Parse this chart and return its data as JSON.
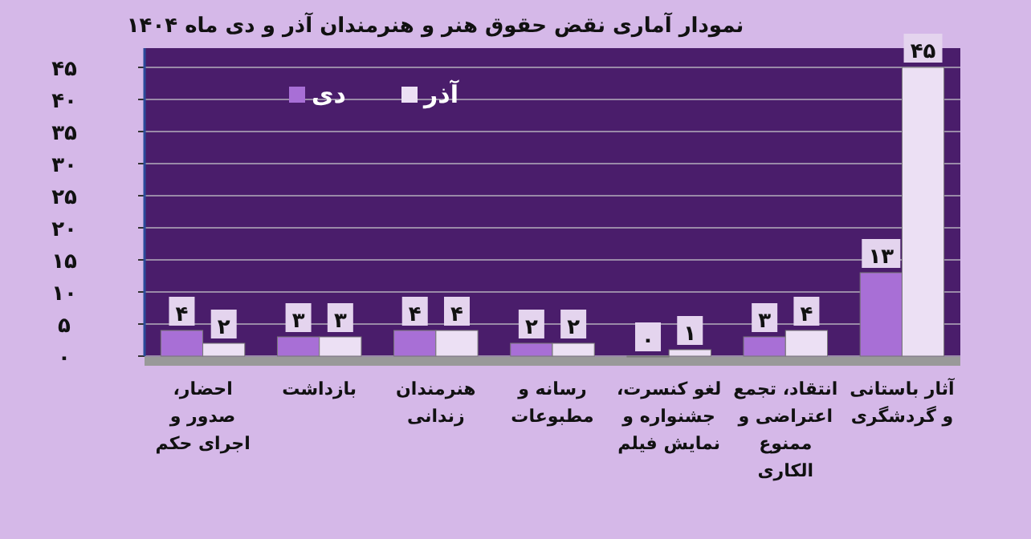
{
  "chart_data": {
    "type": "bar",
    "title": "نمودار آماری نقض حقوق هنر و هنرمندان آذر و دی ماه ۱۴۰۴",
    "categories": [
      "احضار، صدور و اجرای حکم",
      "بازداشت",
      "هنرمندان زندانی",
      "رسانه و مطبوعات",
      "لغو کنسرت، جشنواره و نمایش فیلم",
      "انتقاد، تجمع اعتراضی و ممنوع الکاری",
      "آثار باستانی و گردشگری"
    ],
    "series": [
      {
        "name": "دی",
        "color": "#a86fd6",
        "values": [
          4,
          3,
          4,
          2,
          0,
          3,
          13
        ],
        "value_labels": [
          "۴",
          "۳",
          "۴",
          "۲",
          "۰",
          "۳",
          "۱۳"
        ]
      },
      {
        "name": "آذر",
        "color": "#ece0f4",
        "values": [
          2,
          3,
          4,
          2,
          1,
          4,
          45
        ],
        "value_labels": [
          "۲",
          "۳",
          "۴",
          "۲",
          "۱",
          "۴",
          "۴۵"
        ]
      }
    ],
    "ylim": [
      0,
      48
    ],
    "yticks": [
      {
        "value": 0,
        "label": "۰"
      },
      {
        "value": 5,
        "label": "۵"
      },
      {
        "value": 10,
        "label": "۱۰"
      },
      {
        "value": 15,
        "label": "۱۵"
      },
      {
        "value": 20,
        "label": "۲۰"
      },
      {
        "value": 25,
        "label": "۲۵"
      },
      {
        "value": 30,
        "label": "۳۰"
      },
      {
        "value": 35,
        "label": "۳۵"
      },
      {
        "value": 40,
        "label": "۴۰"
      },
      {
        "value": 45,
        "label": "۴۵"
      }
    ],
    "grid": "y",
    "legend": "top left"
  }
}
